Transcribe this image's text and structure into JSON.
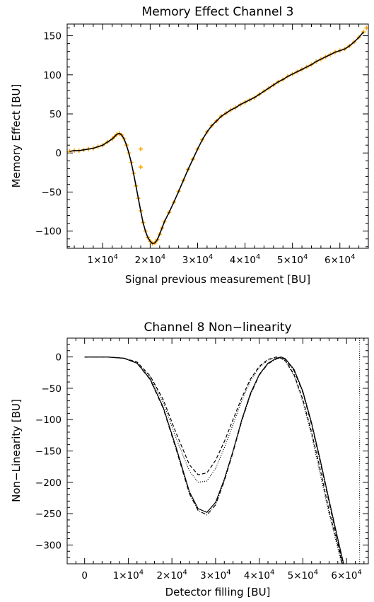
{
  "chart_data": [
    {
      "type": "scatter",
      "title": "Memory Effect Channel 3",
      "xlabel": "Signal previous measurement [BU]",
      "ylabel": "Memory Effect [BU]",
      "xlim": [
        2500,
        66000
      ],
      "ylim": [
        -122,
        165
      ],
      "x_ticks": [
        {
          "value": 10000,
          "mant": "1×10",
          "exp": "4"
        },
        {
          "value": 20000,
          "mant": "2×10",
          "exp": "4"
        },
        {
          "value": 30000,
          "mant": "3×10",
          "exp": "4"
        },
        {
          "value": 40000,
          "mant": "4×10",
          "exp": "4"
        },
        {
          "value": 50000,
          "mant": "5×10",
          "exp": "4"
        },
        {
          "value": 60000,
          "mant": "6×10",
          "exp": "4"
        }
      ],
      "y_ticks": [
        {
          "value": 150,
          "label": "150"
        },
        {
          "value": 100,
          "label": "100"
        },
        {
          "value": 50,
          "label": "50"
        },
        {
          "value": 0,
          "label": "0"
        },
        {
          "value": -50,
          "label": "−50"
        },
        {
          "value": -100,
          "label": "−100"
        }
      ],
      "colors": {
        "points": "#FFA500",
        "fit": "#000000"
      },
      "series": [
        {
          "style": "points",
          "x": [
            3000,
            4000,
            5000,
            6000,
            7000,
            8000,
            9000,
            10000,
            11000,
            12000,
            12500,
            13000,
            13500,
            14000,
            14500,
            15000,
            15500,
            16000,
            16500,
            17000,
            17500,
            18000,
            18500,
            19000,
            19500,
            20000,
            20500,
            21000,
            21500,
            22000,
            22500,
            23000,
            24000,
            25000,
            26000,
            27000,
            28000,
            29000,
            30000,
            31000,
            32000,
            33000,
            34000,
            35000,
            36000,
            37000,
            38000,
            39000,
            40000,
            41000,
            42000,
            43000,
            44000,
            45000,
            46000,
            47000,
            48000,
            49000,
            50000,
            51000,
            52000,
            53000,
            54000,
            55000,
            56000,
            57000,
            58000,
            59000,
            60000,
            61000,
            62000,
            63000,
            64000,
            65000,
            18000,
            18000,
            65600
          ],
          "y": [
            2,
            3,
            3,
            4,
            5,
            6,
            8,
            10,
            14,
            18,
            21,
            24,
            25,
            23,
            18,
            10,
            0,
            -12,
            -26,
            -42,
            -58,
            -74,
            -89,
            -100,
            -108,
            -113,
            -116,
            -115,
            -111,
            -104,
            -96,
            -88,
            -76,
            -63,
            -49,
            -35,
            -21,
            -8,
            5,
            17,
            27,
            35,
            41,
            47,
            51,
            55,
            58,
            62,
            65,
            68,
            71,
            75,
            79,
            83,
            87,
            91,
            94,
            98,
            101,
            104,
            107,
            110,
            113,
            117,
            120,
            123,
            126,
            129,
            131,
            133,
            137,
            142,
            148,
            155,
            5,
            -18,
            160
          ]
        },
        {
          "style": "line",
          "x": [
            3000,
            4000,
            5000,
            6000,
            7000,
            8000,
            9000,
            10000,
            11000,
            12000,
            12500,
            13000,
            13500,
            14000,
            14500,
            15000,
            15500,
            16000,
            16500,
            17000,
            17500,
            18000,
            18500,
            19000,
            19500,
            20000,
            20500,
            21000,
            21500,
            22000,
            22500,
            23000,
            24000,
            25000,
            26000,
            27000,
            28000,
            29000,
            30000,
            31000,
            32000,
            33000,
            34000,
            35000,
            36000,
            37000,
            38000,
            39000,
            40000,
            41000,
            42000,
            43000,
            44000,
            45000,
            46000,
            47000,
            48000,
            49000,
            50000,
            51000,
            52000,
            53000,
            54000,
            55000,
            56000,
            57000,
            58000,
            59000,
            60000,
            61000,
            62000,
            63000,
            64000,
            65000
          ],
          "y": [
            2,
            3,
            3,
            4,
            5,
            6,
            8,
            10,
            14,
            18,
            21,
            24,
            25,
            23,
            18,
            10,
            0,
            -12,
            -26,
            -42,
            -58,
            -74,
            -89,
            -100,
            -108,
            -113,
            -116,
            -115,
            -111,
            -104,
            -96,
            -88,
            -76,
            -63,
            -49,
            -35,
            -21,
            -8,
            5,
            17,
            27,
            35,
            41,
            47,
            51,
            55,
            58,
            62,
            65,
            68,
            71,
            75,
            79,
            83,
            87,
            91,
            94,
            98,
            101,
            104,
            107,
            110,
            113,
            117,
            120,
            123,
            126,
            129,
            131,
            133,
            137,
            142,
            148,
            155
          ]
        }
      ]
    },
    {
      "type": "line",
      "title": "Channel 8 Non−linearity",
      "xlabel": "Detector filling [BU]",
      "ylabel": "Non−Linearity [BU]",
      "xlim": [
        -4000,
        65000
      ],
      "ylim": [
        -330,
        30
      ],
      "x_ticks": [
        {
          "value": 0,
          "mant": "0",
          "exp": ""
        },
        {
          "value": 10000,
          "mant": "1×10",
          "exp": "4"
        },
        {
          "value": 20000,
          "mant": "2×10",
          "exp": "4"
        },
        {
          "value": 30000,
          "mant": "3×10",
          "exp": "4"
        },
        {
          "value": 40000,
          "mant": "4×10",
          "exp": "4"
        },
        {
          "value": 50000,
          "mant": "5×10",
          "exp": "4"
        },
        {
          "value": 60000,
          "mant": "6×10",
          "exp": "4"
        }
      ],
      "y_ticks": [
        {
          "value": 0,
          "label": "0"
        },
        {
          "value": -50,
          "label": "−50"
        },
        {
          "value": -100,
          "label": "−100"
        },
        {
          "value": -150,
          "label": "−150"
        },
        {
          "value": -200,
          "label": "−200"
        },
        {
          "value": -250,
          "label": "−250"
        },
        {
          "value": -300,
          "label": "−300"
        }
      ],
      "vline": {
        "x": 63000,
        "dash": "dotted"
      },
      "series": [
        {
          "dash": "solid",
          "x": [
            0,
            5000,
            9000,
            12000,
            15000,
            18000,
            21000,
            24000,
            26000,
            28000,
            30000,
            32000,
            34000,
            36000,
            38000,
            40000,
            42000,
            44000,
            45000,
            46000,
            48000,
            50000,
            52000,
            54000,
            56000,
            58000,
            59000,
            60000,
            61000
          ],
          "y": [
            0,
            0,
            -2,
            -10,
            -35,
            -80,
            -145,
            -215,
            -242,
            -248,
            -232,
            -195,
            -150,
            -100,
            -58,
            -28,
            -10,
            -2,
            0,
            -3,
            -20,
            -55,
            -105,
            -165,
            -228,
            -290,
            -320,
            -350,
            -380
          ]
        },
        {
          "dash": "dashed",
          "x": [
            0,
            5000,
            9000,
            12000,
            15000,
            18000,
            21000,
            24000,
            26000,
            28000,
            30000,
            32000,
            34000,
            36000,
            38000,
            40000,
            42000,
            44000,
            45000,
            46000,
            48000,
            50000,
            52000,
            54000,
            56000,
            58000,
            59000,
            60000
          ],
          "y": [
            0,
            0,
            -2,
            -8,
            -30,
            -68,
            -122,
            -172,
            -188,
            -185,
            -165,
            -135,
            -100,
            -65,
            -35,
            -15,
            -4,
            0,
            -2,
            -6,
            -28,
            -68,
            -120,
            -180,
            -245,
            -300,
            -330,
            -360
          ]
        },
        {
          "dash": "dotted",
          "x": [
            0,
            5000,
            9000,
            12000,
            15000,
            18000,
            21000,
            24000,
            26000,
            28000,
            30000,
            32000,
            34000,
            36000,
            38000,
            40000,
            42000,
            44000,
            45000,
            46000,
            48000,
            50000,
            52000,
            54000,
            56000,
            58000,
            59000,
            60000
          ],
          "y": [
            0,
            0,
            -2,
            -9,
            -32,
            -72,
            -130,
            -182,
            -200,
            -198,
            -178,
            -145,
            -108,
            -70,
            -38,
            -17,
            -5,
            -1,
            -2,
            -7,
            -30,
            -72,
            -125,
            -188,
            -250,
            -305,
            -335,
            -365
          ]
        },
        {
          "dash": "dashdot",
          "x": [
            0,
            5000,
            9000,
            12000,
            15000,
            18000,
            21000,
            24000,
            26000,
            28000,
            30000,
            32000,
            34000,
            36000,
            38000,
            40000,
            42000,
            44000,
            45000,
            46000,
            48000,
            50000,
            52000,
            54000,
            56000,
            58000,
            59000,
            60000
          ],
          "y": [
            0,
            0,
            -2,
            -10,
            -36,
            -82,
            -148,
            -218,
            -245,
            -252,
            -236,
            -198,
            -152,
            -102,
            -60,
            -29,
            -11,
            -3,
            -1,
            -4,
            -22,
            -57,
            -108,
            -168,
            -232,
            -295,
            -325,
            -355
          ]
        }
      ]
    }
  ]
}
